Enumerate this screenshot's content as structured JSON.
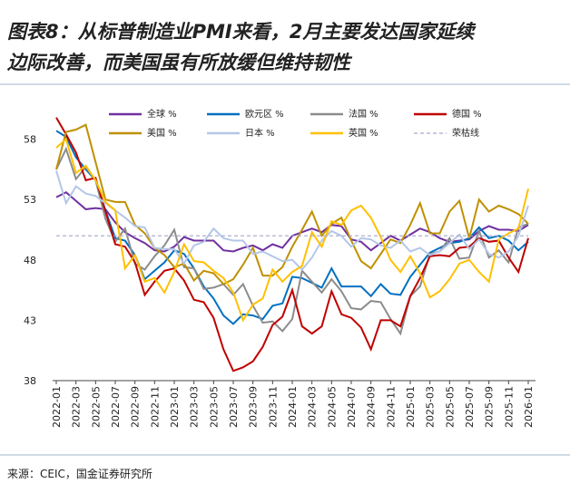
{
  "chart_data": {
    "type": "line",
    "title_lines": [
      "图表8：从标普制造业PMI来看，2月主要发达国家延续",
      "边际改善，而美国虽有所放缓但维持韧性"
    ],
    "source": "来源：CEIC，国金证券研究所",
    "categories": [
      "2022-01",
      null,
      "2022-03",
      null,
      "2022-05",
      null,
      "2022-07",
      null,
      "2022-09",
      null,
      "2022-11",
      null,
      "2023-01",
      null,
      "2023-03",
      null,
      "2023-05",
      null,
      "2023-07",
      null,
      "2023-09",
      null,
      "2023-11",
      null,
      "2024-01",
      null,
      "2024-03",
      null,
      "2024-05",
      null,
      "2024-07",
      null,
      "2024-09",
      null,
      "2024-11",
      null,
      "2025-01",
      null,
      "2025-03",
      null,
      "2025-05",
      null,
      "2025-07",
      null,
      "2025-09",
      null,
      "2025-11",
      null,
      "2026-01"
    ],
    "ylim": [
      38,
      60
    ],
    "yticks": [
      38,
      43,
      48,
      53,
      58
    ],
    "grid": false,
    "series": [
      {
        "name": "全球 %",
        "color": "#7030a0",
        "values": [
          53.2,
          53.6,
          52.9,
          52.2,
          52.3,
          52.2,
          51.1,
          50.3,
          49.8,
          49.4,
          48.8,
          48.7,
          49.1,
          49.9,
          49.6,
          49.6,
          49.6,
          48.8,
          48.7,
          49.0,
          49.2,
          48.8,
          49.3,
          49.0,
          50.0,
          50.3,
          50.6,
          50.3,
          50.9,
          50.8,
          49.7,
          49.5,
          48.8,
          49.4,
          50.0,
          49.6,
          50.1,
          50.6,
          50.3,
          49.8,
          49.5,
          49.6,
          49.7,
          50.4,
          50.8,
          50.5,
          50.5,
          50.4,
          50.9
        ]
      },
      {
        "name": "欧元区 %",
        "color": "#0070c0",
        "values": [
          58.7,
          58.2,
          56.5,
          55.5,
          54.6,
          52.1,
          49.8,
          49.6,
          48.4,
          46.4,
          47.1,
          47.8,
          48.8,
          48.5,
          47.3,
          45.8,
          44.8,
          43.4,
          42.7,
          43.5,
          43.4,
          43.1,
          44.2,
          44.4,
          46.6,
          46.5,
          46.1,
          45.7,
          47.3,
          45.8,
          45.8,
          45.8,
          45.0,
          46.0,
          45.2,
          45.1,
          46.6,
          47.6,
          48.6,
          49.0,
          49.4,
          49.5,
          49.8,
          50.7,
          49.8,
          50.0,
          49.6,
          48.8,
          49.5
        ]
      },
      {
        "name": "法国 %",
        "color": "#8c8c8c",
        "values": [
          55.5,
          57.2,
          54.7,
          55.7,
          54.6,
          51.4,
          49.5,
          50.6,
          47.7,
          47.2,
          48.3,
          49.2,
          50.5,
          47.4,
          47.3,
          45.6,
          45.7,
          46.0,
          45.1,
          46.0,
          44.2,
          42.8,
          42.9,
          42.1,
          43.1,
          47.1,
          46.2,
          45.3,
          46.4,
          45.4,
          44.0,
          43.9,
          44.6,
          44.5,
          43.1,
          41.9,
          45.0,
          45.8,
          48.5,
          48.7,
          49.8,
          48.1,
          48.2,
          50.4,
          48.2,
          48.8,
          47.8,
          50.7,
          51.0
        ]
      },
      {
        "name": "德国 %",
        "color": "#c00000",
        "values": [
          59.8,
          58.4,
          56.9,
          54.6,
          54.8,
          52.0,
          49.3,
          49.1,
          47.8,
          45.1,
          46.2,
          47.1,
          47.3,
          46.3,
          44.7,
          44.5,
          43.2,
          40.6,
          38.8,
          39.1,
          39.6,
          40.8,
          42.6,
          43.3,
          45.5,
          42.5,
          41.9,
          42.5,
          45.4,
          43.5,
          43.2,
          42.4,
          40.6,
          43.0,
          43.0,
          42.5,
          45.0,
          46.5,
          48.3,
          48.4,
          48.3,
          49.0,
          49.1,
          49.8,
          49.5,
          49.6,
          48.2,
          47.0,
          49.8
        ]
      },
      {
        "name": "美国 %",
        "color": "#bf9000",
        "values": [
          55.5,
          58.6,
          58.8,
          59.2,
          56.1,
          53.0,
          52.8,
          52.8,
          50.9,
          50.2,
          49.0,
          48.4,
          47.4,
          47.7,
          46.3,
          47.1,
          46.9,
          46.0,
          46.4,
          47.6,
          49.0,
          46.7,
          46.7,
          47.4,
          49.1,
          50.5,
          52.0,
          50.0,
          51.0,
          51.5,
          49.6,
          47.9,
          47.3,
          48.5,
          49.7,
          49.4,
          50.9,
          52.7,
          50.2,
          50.2,
          52.0,
          52.9,
          49.8,
          53.0,
          52.0,
          52.5,
          52.2,
          51.8,
          51.0
        ]
      },
      {
        "name": "日本 %",
        "color": "#b4c7e7",
        "values": [
          55.4,
          52.7,
          54.1,
          53.5,
          53.3,
          52.7,
          52.1,
          51.5,
          50.8,
          50.7,
          49.0,
          48.9,
          48.9,
          47.7,
          49.2,
          49.5,
          50.6,
          49.8,
          49.6,
          49.6,
          48.5,
          48.7,
          48.3,
          47.9,
          48.0,
          47.2,
          48.2,
          49.6,
          50.4,
          50.0,
          49.1,
          49.8,
          49.7,
          49.2,
          49.0,
          49.6,
          48.7,
          49.0,
          48.4,
          48.7,
          49.4,
          50.1,
          48.9,
          49.7,
          48.5,
          48.2,
          48.7,
          50.0,
          52.5
        ]
      },
      {
        "name": "英国 %",
        "color": "#ffc000",
        "values": [
          57.3,
          58.0,
          55.2,
          55.8,
          54.6,
          52.8,
          52.1,
          47.3,
          48.4,
          46.2,
          46.5,
          45.3,
          47.0,
          49.3,
          47.9,
          47.8,
          47.1,
          46.5,
          45.3,
          43.0,
          44.3,
          44.8,
          47.2,
          46.2,
          47.0,
          47.5,
          50.3,
          49.1,
          51.2,
          50.9,
          52.1,
          52.5,
          51.5,
          49.9,
          48.0,
          47.0,
          48.3,
          46.9,
          44.9,
          45.4,
          46.4,
          47.7,
          48.0,
          47.0,
          46.2,
          49.7,
          50.2,
          50.6,
          53.9
        ]
      },
      {
        "name": "荣枯线",
        "color": "#a6a6c8",
        "dashed": true,
        "values": [
          50,
          50,
          50,
          50,
          50,
          50,
          50,
          50,
          50,
          50,
          50,
          50,
          50,
          50,
          50,
          50,
          50,
          50,
          50,
          50,
          50,
          50,
          50,
          50,
          50,
          50,
          50,
          50,
          50,
          50,
          50,
          50,
          50,
          50,
          50,
          50,
          50,
          50,
          50,
          50,
          50,
          50,
          50,
          50,
          50,
          50,
          50,
          50,
          50
        ]
      }
    ]
  }
}
